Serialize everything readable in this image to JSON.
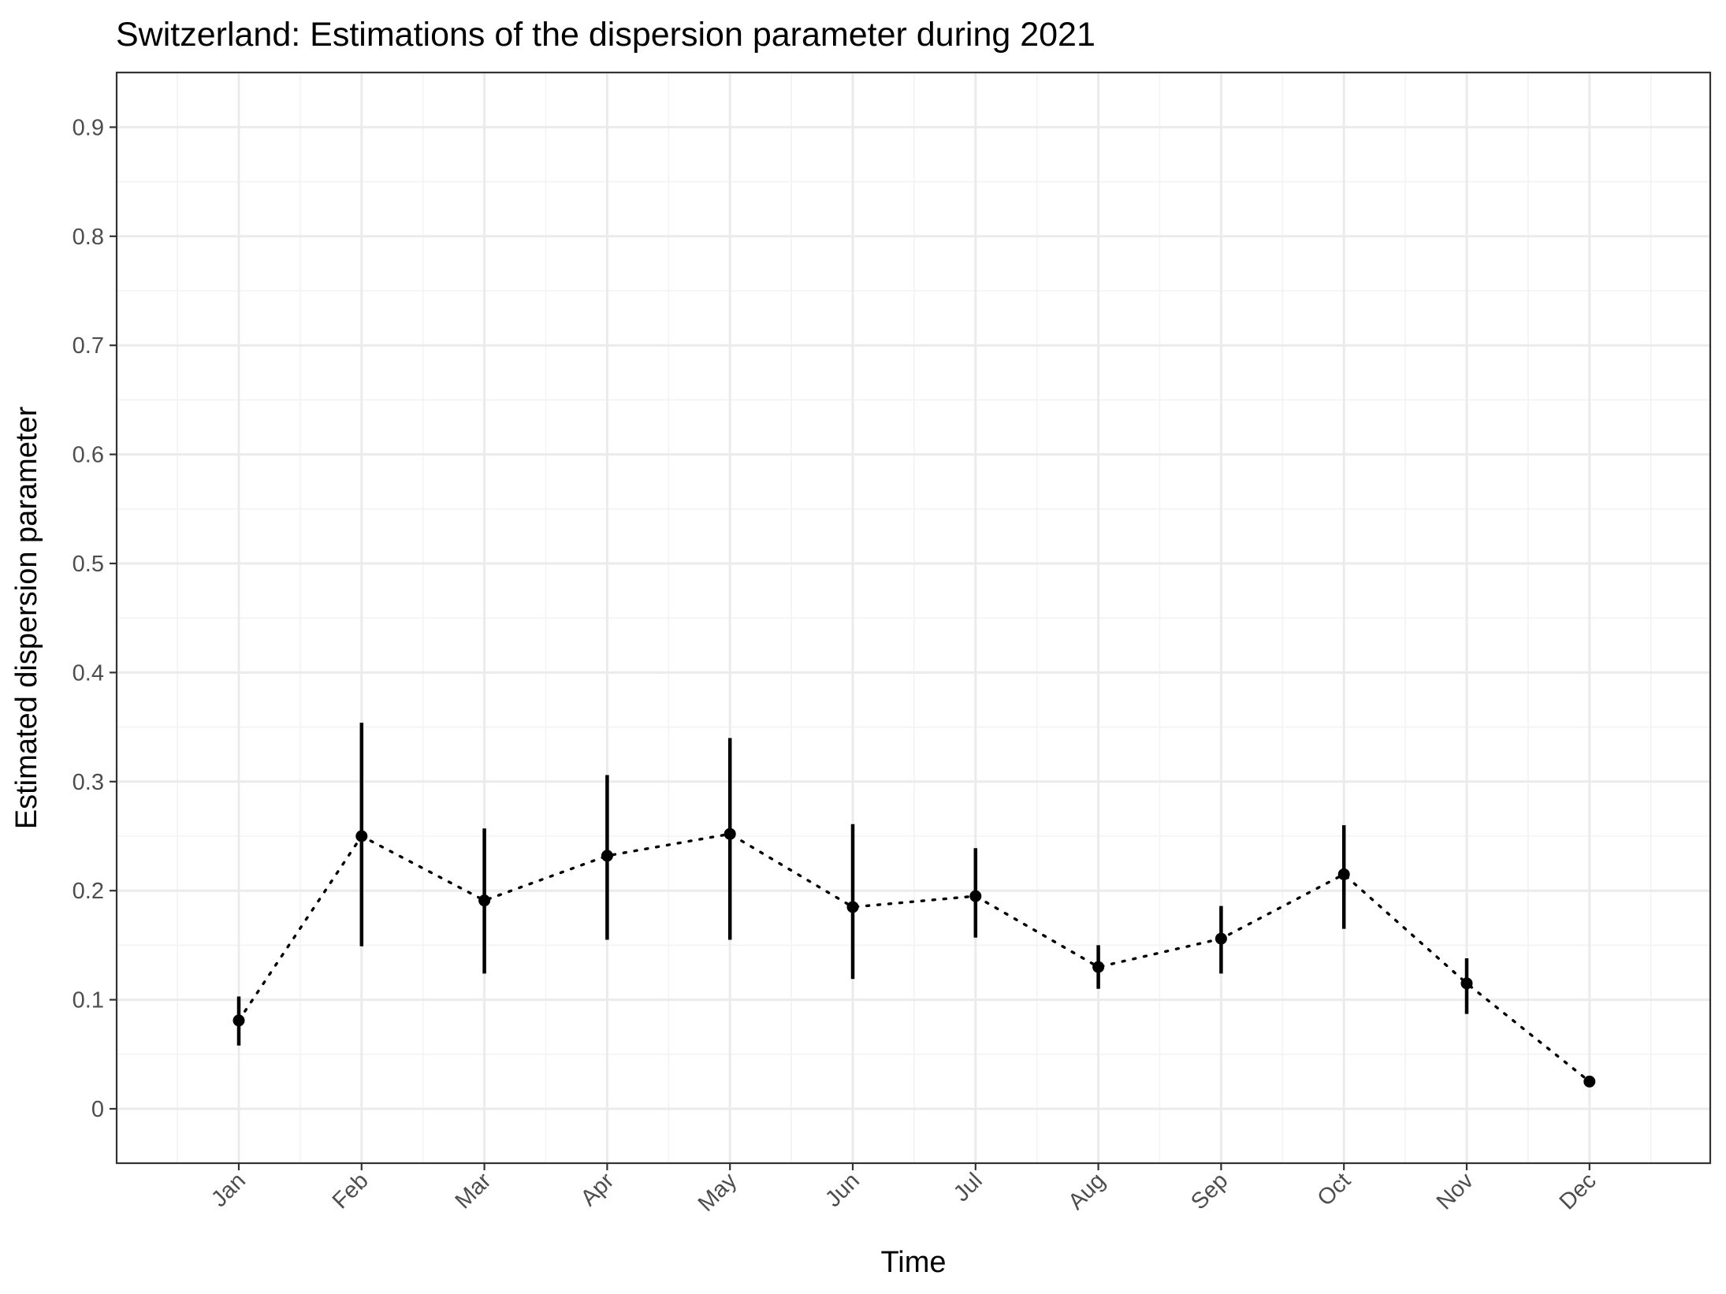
{
  "chart_data": {
    "type": "scatter",
    "title": "Switzerland: Estimations of the dispersion parameter during 2021",
    "xlabel": "Time",
    "ylabel": "Estimated dispersion parameter",
    "categories": [
      "Jan",
      "Feb",
      "Mar",
      "Apr",
      "May",
      "Jun",
      "Jul",
      "Aug",
      "Sep",
      "Oct",
      "Nov",
      "Dec"
    ],
    "values": [
      0.081,
      0.25,
      0.191,
      0.232,
      0.252,
      0.185,
      0.195,
      0.13,
      0.156,
      0.215,
      0.115,
      0.025
    ],
    "lower": [
      0.058,
      0.149,
      0.124,
      0.155,
      0.155,
      0.119,
      0.157,
      0.11,
      0.124,
      0.165,
      0.087,
      0.02
    ],
    "upper": [
      0.103,
      0.354,
      0.257,
      0.306,
      0.34,
      0.261,
      0.239,
      0.15,
      0.186,
      0.26,
      0.138,
      0.03
    ],
    "yticks": [
      0,
      0.1,
      0.2,
      0.3,
      0.4,
      0.5,
      0.6,
      0.7,
      0.8,
      0.9
    ],
    "ytick_labels": [
      "0",
      "0.1",
      "0.2",
      "0.3",
      "0.4",
      "0.5",
      "0.6",
      "0.7",
      "0.8",
      "0.9"
    ],
    "ylim": [
      -0.047,
      0.95
    ],
    "grid": true,
    "legend": "none",
    "line_style": "dotted",
    "color": "#000000"
  }
}
